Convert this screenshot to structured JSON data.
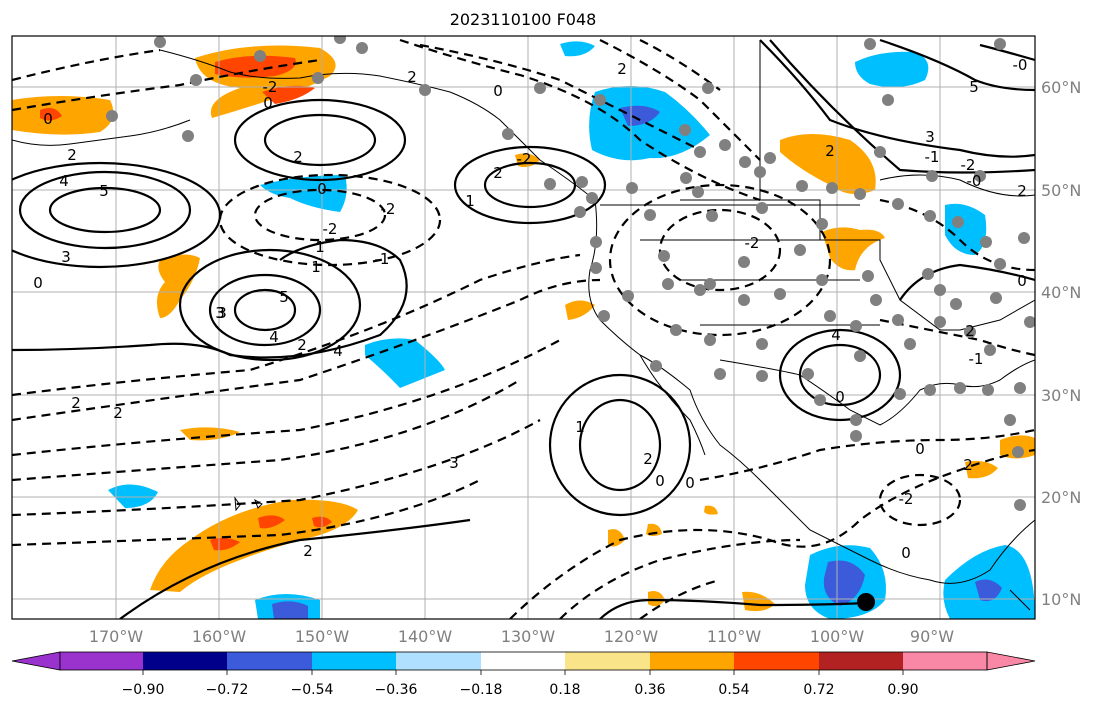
{
  "title": "2023110100 F048",
  "map": {
    "lon_labels": [
      "170°W",
      "160°W",
      "150°W",
      "140°W",
      "130°W",
      "120°W",
      "110°W",
      "100°W",
      "90°W"
    ],
    "lat_labels": [
      "60°N",
      "50°N",
      "40°N",
      "30°N",
      "20°N",
      "10°N"
    ],
    "contour_labels": [
      "0",
      "2",
      "4",
      "5",
      "3",
      "0",
      "2",
      "0",
      "-2",
      "2",
      "3",
      "2",
      "0",
      "-2",
      "-1",
      "1",
      "4",
      "5",
      "3",
      "2",
      "4",
      "2",
      "0",
      "-2",
      "2",
      "1",
      "1",
      "-2",
      "-2",
      "2",
      "0",
      "0",
      "1",
      "3",
      "2",
      "0",
      "4",
      "5",
      "-0",
      "2",
      "-1",
      "-2",
      "-0",
      "0",
      "2",
      "-1",
      "0",
      "2",
      "-2",
      "0",
      "2",
      "3",
      "2"
    ],
    "shading_colors": {
      "neg_0_36": "#00bfff",
      "neg_0_54": "#3b5bdb",
      "pos_0_36": "#ffa500",
      "pos_0_54": "#ff4500"
    }
  },
  "colorbar": {
    "ticks": [
      "−0.90",
      "−0.72",
      "−0.54",
      "−0.36",
      "−0.18",
      "0.18",
      "0.36",
      "0.54",
      "0.72",
      "0.90"
    ],
    "colors": [
      "#9a32cd",
      "#00008b",
      "#3b5bdb",
      "#00bfff",
      "#b0e0ff",
      "#ffffff",
      "#f9e48a",
      "#ffa500",
      "#ff4500",
      "#b22222",
      "#f987a6"
    ]
  }
}
